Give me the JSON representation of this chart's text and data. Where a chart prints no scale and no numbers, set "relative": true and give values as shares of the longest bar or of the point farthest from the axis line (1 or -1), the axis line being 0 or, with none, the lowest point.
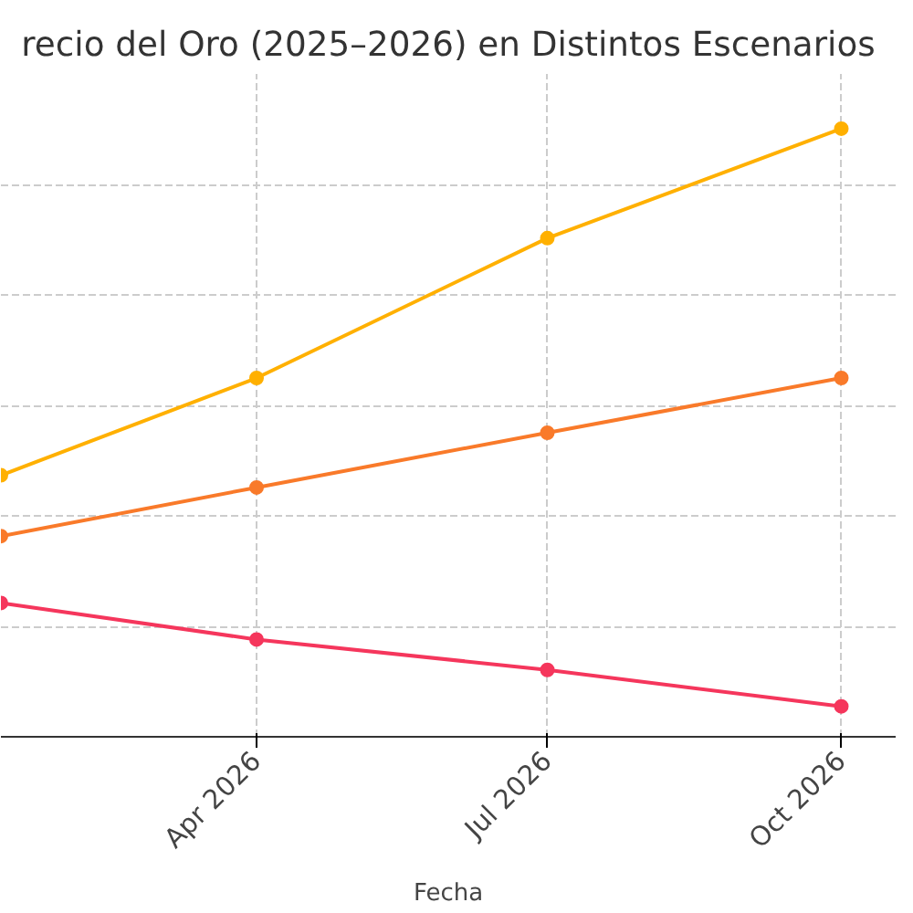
{
  "chart_data": {
    "type": "line",
    "title": "recio del Oro (2025–2026) en Distintos Escenarios",
    "xlabel": "Fecha",
    "x": [
      "2026-01-11",
      "2026-04-01",
      "2026-07-01",
      "2026-10-01"
    ],
    "series": [
      {
        "color": "#ffb000",
        "values": [
          0.43,
          0.59,
          0.82,
          1.0
        ]
      },
      {
        "color": "#f97a2a",
        "values": [
          0.33,
          0.41,
          0.5,
          0.59
        ]
      },
      {
        "color": "#f5365c",
        "values": [
          0.22,
          0.16,
          0.11,
          0.05
        ]
      }
    ],
    "relative": true,
    "xlim": [
      "2026-01-11",
      "2026-10-18"
    ],
    "xticks": [
      {
        "value": "2026-04-01",
        "label": "Apr 2026"
      },
      {
        "value": "2026-07-01",
        "label": "Jul 2026"
      },
      {
        "value": "2026-10-01",
        "label": "Oct 2026"
      }
    ],
    "grid": true,
    "marker": "circle",
    "line_style": "solid",
    "tick_labels": "x"
  }
}
